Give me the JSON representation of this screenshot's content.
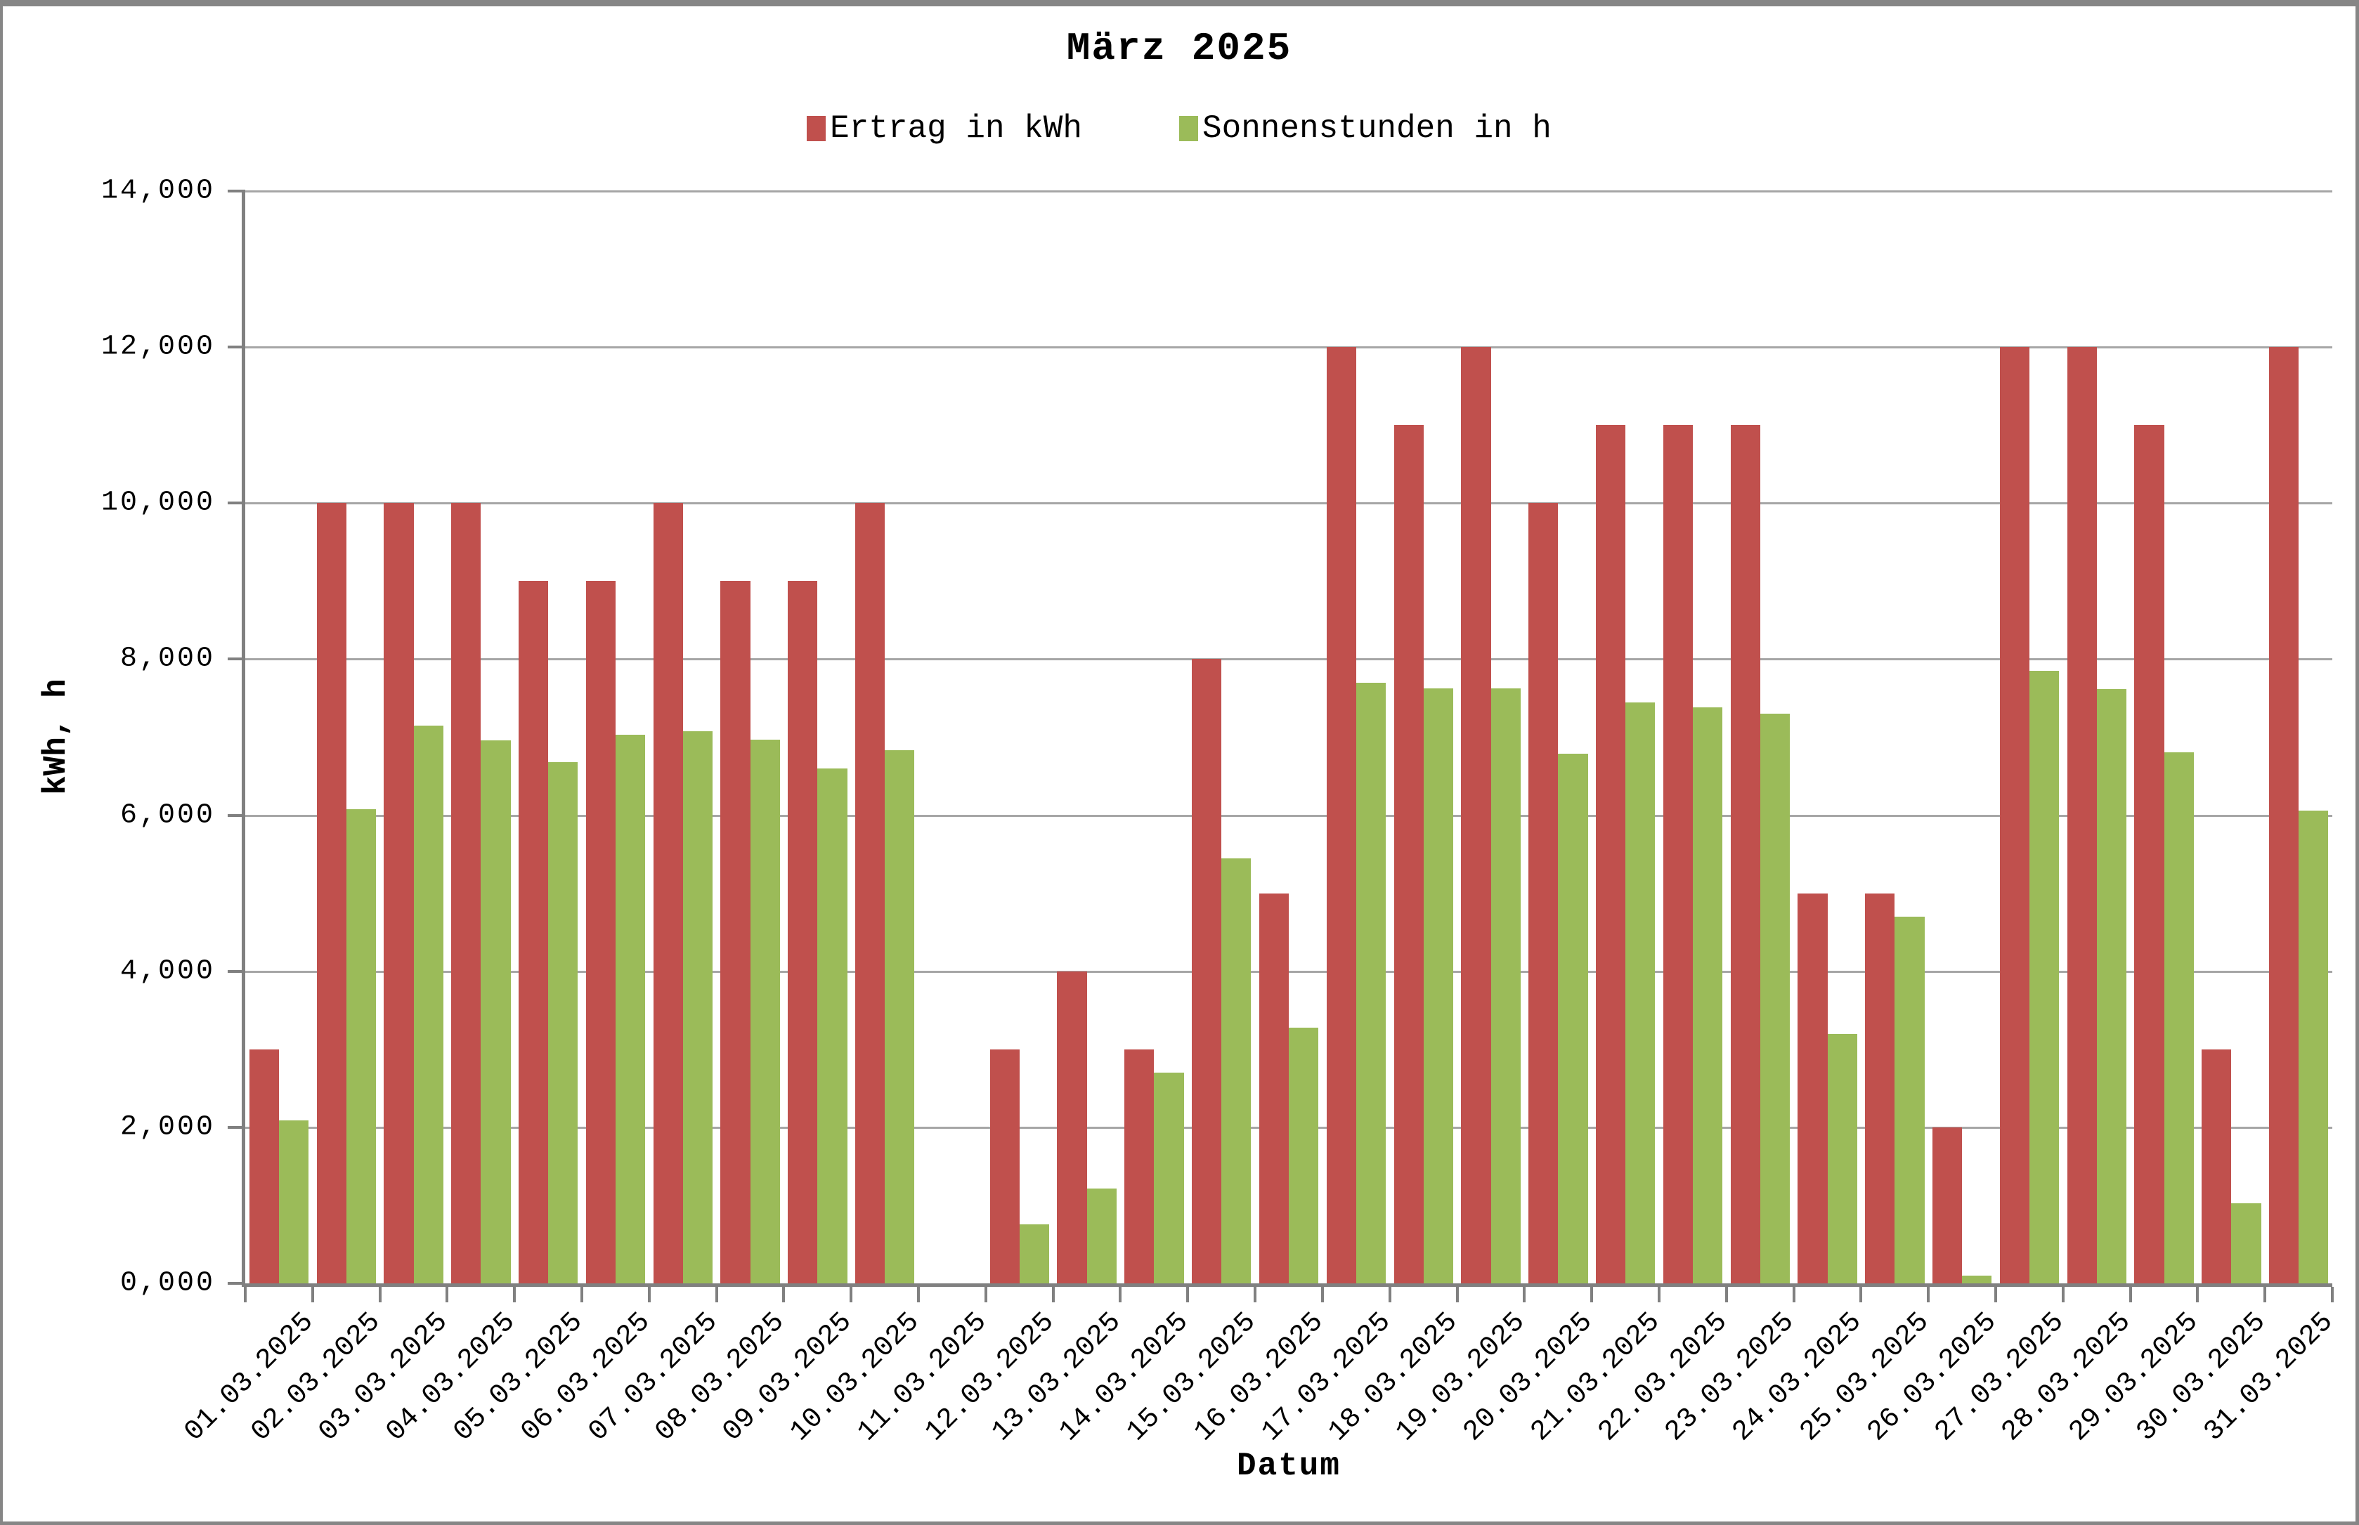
{
  "title": "März 2025",
  "legend": {
    "items": [
      {
        "label": "Ertrag in kWh",
        "color": "#C0504D"
      },
      {
        "label": "Sonnenstunden in h",
        "color": "#9BBB59"
      }
    ]
  },
  "y_axis": {
    "title": "kWh, h",
    "tick_labels": [
      "0,000",
      "2,000",
      "4,000",
      "6,000",
      "8,000",
      "10,000",
      "12,000",
      "14,000"
    ],
    "tick_values": [
      0,
      2,
      4,
      6,
      8,
      10,
      12,
      14
    ],
    "max": 14
  },
  "x_axis": {
    "title": "Datum"
  },
  "colors": {
    "series_red": "#C0504D",
    "series_green": "#9BBB59",
    "gridline": "#A6A6A6",
    "axis": "#808080",
    "frame": "#868686",
    "background": "#FFFFFF"
  },
  "chart_data": {
    "type": "bar",
    "title": "März 2025",
    "xlabel": "Datum",
    "ylabel": "kWh, h",
    "ylim": [
      0,
      14
    ],
    "grid": true,
    "legend_position": "top",
    "categories": [
      "01.03.2025",
      "02.03.2025",
      "03.03.2025",
      "04.03.2025",
      "05.03.2025",
      "06.03.2025",
      "07.03.2025",
      "08.03.2025",
      "09.03.2025",
      "10.03.2025",
      "11.03.2025",
      "12.03.2025",
      "13.03.2025",
      "14.03.2025",
      "15.03.2025",
      "16.03.2025",
      "17.03.2025",
      "18.03.2025",
      "19.03.2025",
      "20.03.2025",
      "21.03.2025",
      "22.03.2025",
      "23.03.2025",
      "24.03.2025",
      "25.03.2025",
      "26.03.2025",
      "27.03.2025",
      "28.03.2025",
      "29.03.2025",
      "30.03.2025",
      "31.03.2025"
    ],
    "series": [
      {
        "name": "Ertrag in kWh",
        "color": "#C0504D",
        "values": [
          3.0,
          10.0,
          10.0,
          10.0,
          9.0,
          9.0,
          10.0,
          9.0,
          9.0,
          10.0,
          0.0,
          3.0,
          4.0,
          3.0,
          8.0,
          5.0,
          12.0,
          11.0,
          12.0,
          10.0,
          11.0,
          11.0,
          11.0,
          5.0,
          5.0,
          2.0,
          12.0,
          12.0,
          11.0,
          3.0,
          12.0
        ]
      },
      {
        "name": "Sonnenstunden in h",
        "color": "#9BBB59",
        "values": [
          2.09,
          6.08,
          7.15,
          6.96,
          6.68,
          7.03,
          7.08,
          6.97,
          6.6,
          6.83,
          0.0,
          0.76,
          1.22,
          2.7,
          5.45,
          3.28,
          7.7,
          7.63,
          7.63,
          6.79,
          7.45,
          7.38,
          7.3,
          3.2,
          4.7,
          0.1,
          7.85,
          7.62,
          6.81,
          1.03,
          6.06
        ]
      }
    ]
  }
}
